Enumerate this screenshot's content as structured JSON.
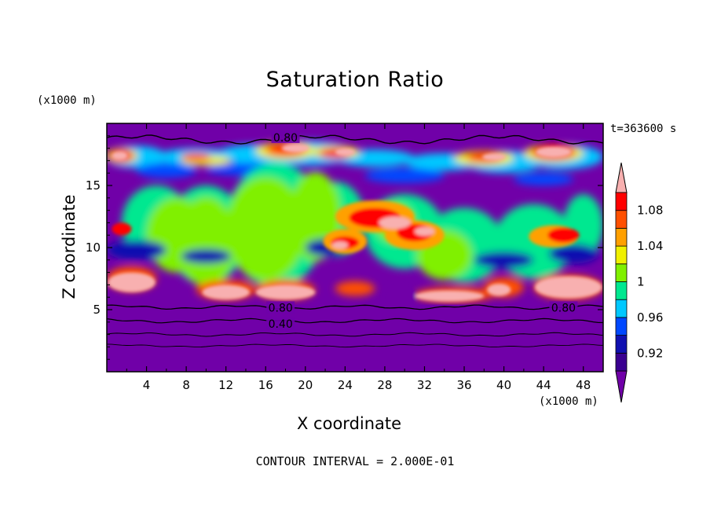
{
  "chart_data": {
    "type": "heatmap",
    "title": "Saturation Ratio",
    "xlabel": "X coordinate",
    "ylabel": "Z coordinate",
    "x_unit": "(x1000 m)",
    "z_unit": "(x1000 m)",
    "time_label": "t=363600 s",
    "footer": "CONTOUR INTERVAL = 2.000E-01",
    "xlim": [
      0,
      50
    ],
    "ylim": [
      0,
      20
    ],
    "x_ticks": [
      4,
      8,
      12,
      16,
      20,
      24,
      28,
      32,
      36,
      40,
      44,
      48
    ],
    "y_ticks": [
      5,
      10,
      15
    ],
    "colorbar": {
      "levels": [
        0.9,
        0.92,
        0.94,
        0.96,
        0.98,
        1.0,
        1.02,
        1.04,
        1.06,
        1.08,
        1.1
      ],
      "tick_labels": [
        "0.92",
        "0.96",
        "1",
        "1.04",
        "1.08"
      ],
      "tick_values": [
        0.92,
        0.96,
        1.0,
        1.04,
        1.08
      ],
      "colors": [
        "#3a0090",
        "#1010b0",
        "#0048ff",
        "#00c8ff",
        "#00e890",
        "#80f000",
        "#f0f000",
        "#ffa000",
        "#ff5000",
        "#ff0000"
      ],
      "under_color": "#7000a8",
      "over_color": "#f8b0b0"
    },
    "contour_labels": [
      {
        "text": "0.80",
        "x": 18.0,
        "y": 18.8
      },
      {
        "text": "0.80",
        "x": 17.5,
        "y": 5.1
      },
      {
        "text": "0.80",
        "x": 46.0,
        "y": 5.1
      },
      {
        "text": "0.40",
        "x": 17.5,
        "y": 3.8
      }
    ]
  }
}
